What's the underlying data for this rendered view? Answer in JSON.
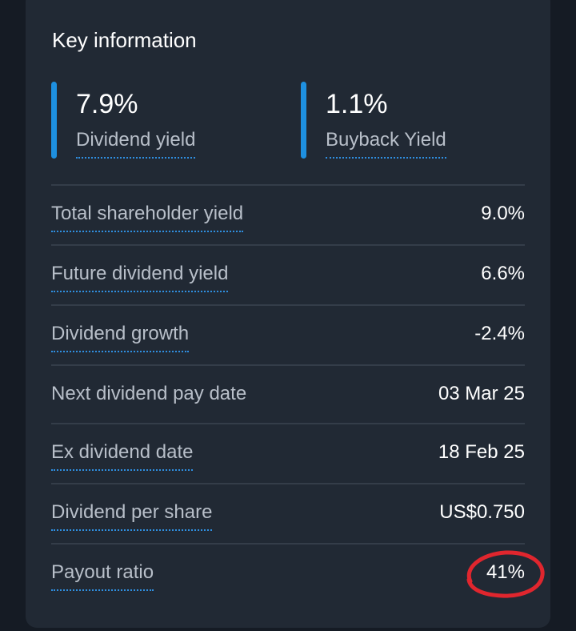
{
  "card": {
    "title": "Key information"
  },
  "highlights": [
    {
      "value": "7.9%",
      "label": "Dividend yield"
    },
    {
      "value": "1.1%",
      "label": "Buyback Yield"
    }
  ],
  "rows": [
    {
      "label": "Total shareholder yield",
      "value": "9.0%"
    },
    {
      "label": "Future dividend yield",
      "value": "6.6%"
    },
    {
      "label": "Dividend growth",
      "value": "-2.4%"
    },
    {
      "label": "Next dividend pay date",
      "value": "03 Mar 25"
    },
    {
      "label": "Ex dividend date",
      "value": "18 Feb 25"
    },
    {
      "label": "Dividend per share",
      "value": "US$0.750"
    },
    {
      "label": "Payout ratio",
      "value": "41%"
    }
  ],
  "colors": {
    "accent": "#1e90e0",
    "annotation": "#e0262e",
    "card_background": "#212934",
    "page_background": "#151b24"
  }
}
